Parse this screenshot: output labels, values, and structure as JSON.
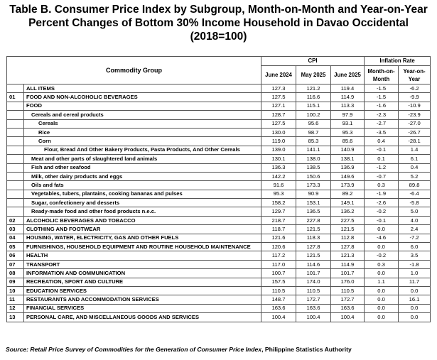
{
  "title": {
    "line1": "Table B. Consumer Price Index by Subgroup, Month-on-Month and Year-on-Year",
    "line2": "Percent Changes of Bottom 30% Income Household in Davao Occidental",
    "line3": "(2018=100)"
  },
  "header": {
    "commodity_group": "Commodity Group",
    "cpi": "CPI",
    "inflation_rate": "Inflation Rate",
    "col_june2024": "June 2024",
    "col_may2025": "May 2025",
    "col_june2025": "June 2025",
    "col_mom_line1": "Month-on-",
    "col_mom_line2": "Month",
    "col_yoy_line1": "Year-on-",
    "col_yoy_line2": "Year"
  },
  "rows": [
    {
      "code": "",
      "name": "ALL ITEMS",
      "level": 0,
      "june2024": "127.3",
      "may2025": "121.2",
      "june2025": "119.4",
      "mom": "-1.5",
      "yoy": "-6.2"
    },
    {
      "code": "01",
      "name": "FOOD AND NON-ALCOHOLIC BEVERAGES",
      "level": 0,
      "june2024": "127.5",
      "may2025": "116.6",
      "june2025": "114.9",
      "mom": "-1.5",
      "yoy": "-9.9"
    },
    {
      "code": "",
      "name": "FOOD",
      "level": 0,
      "june2024": "127.1",
      "may2025": "115.1",
      "june2025": "113.3",
      "mom": "-1.6",
      "yoy": "-10.9"
    },
    {
      "code": "",
      "name": "Cereals and cereal products",
      "level": 1,
      "june2024": "128.7",
      "may2025": "100.2",
      "june2025": "97.9",
      "mom": "-2.3",
      "yoy": "-23.9"
    },
    {
      "code": "",
      "name": "Cereals",
      "level": 2,
      "june2024": "127.5",
      "may2025": "95.6",
      "june2025": "93.1",
      "mom": "-2.7",
      "yoy": "-27.0"
    },
    {
      "code": "",
      "name": "Rice",
      "level": 2,
      "june2024": "130.0",
      "may2025": "98.7",
      "june2025": "95.3",
      "mom": "-3.5",
      "yoy": "-26.7"
    },
    {
      "code": "",
      "name": "Corn",
      "level": 2,
      "june2024": "119.0",
      "may2025": "85.3",
      "june2025": "85.6",
      "mom": "0.4",
      "yoy": "-28.1"
    },
    {
      "code": "",
      "name": "Flour, Bread And Other Bakery Products, Pasta Products, And Other Cereals",
      "level": 3,
      "june2024": "139.0",
      "may2025": "141.1",
      "june2025": "140.9",
      "mom": "-0.1",
      "yoy": "1.4"
    },
    {
      "code": "",
      "name": "Meat and other parts of slaughtered land animals",
      "level": 1,
      "june2024": "130.1",
      "may2025": "138.0",
      "june2025": "138.1",
      "mom": "0.1",
      "yoy": "6.1"
    },
    {
      "code": "",
      "name": "Fish and other seafood",
      "level": 1,
      "june2024": "136.3",
      "may2025": "138.5",
      "june2025": "136.9",
      "mom": "-1.2",
      "yoy": "0.4"
    },
    {
      "code": "",
      "name": "Milk, other dairy products and eggs",
      "level": 1,
      "june2024": "142.2",
      "may2025": "150.6",
      "june2025": "149.6",
      "mom": "-0.7",
      "yoy": "5.2"
    },
    {
      "code": "",
      "name": "Oils and fats",
      "level": 1,
      "june2024": "91.6",
      "may2025": "173.3",
      "june2025": "173.9",
      "mom": "0.3",
      "yoy": "89.8"
    },
    {
      "code": "",
      "name": "Vegetables, tubers, plantains, cooking bananas and pulses",
      "level": 1,
      "june2024": "95.3",
      "may2025": "90.9",
      "june2025": "89.2",
      "mom": "-1.9",
      "yoy": "-6.4"
    },
    {
      "code": "",
      "name": "Sugar, confectionery and desserts",
      "level": 1,
      "june2024": "158.2",
      "may2025": "153.1",
      "june2025": "149.1",
      "mom": "-2.6",
      "yoy": "-5.8"
    },
    {
      "code": "",
      "name": "Ready-made food and other food products n.e.c.",
      "level": 1,
      "june2024": "129.7",
      "may2025": "136.5",
      "june2025": "136.2",
      "mom": "-0.2",
      "yoy": "5.0"
    },
    {
      "code": "02",
      "name": "ALCOHOLIC BEVERAGES  AND TOBACCO",
      "level": 0,
      "june2024": "218.7",
      "may2025": "227.8",
      "june2025": "227.5",
      "mom": "-0.1",
      "yoy": "4.0"
    },
    {
      "code": "03",
      "name": "CLOTHING AND FOOTWEAR",
      "level": 0,
      "june2024": "118.7",
      "may2025": "121.5",
      "june2025": "121.5",
      "mom": "0.0",
      "yoy": "2.4"
    },
    {
      "code": "04",
      "name": "HOUSING, WATER, ELECTRICITY, GAS AND OTHER FUELS",
      "level": 0,
      "june2024": "121.6",
      "may2025": "118.3",
      "june2025": "112.8",
      "mom": "-4.6",
      "yoy": "-7.2"
    },
    {
      "code": "05",
      "name": "FURNISHINGS, HOUSEHOLD EQUIPMENT AND ROUTINE HOUSEHOLD MAINTENANCE",
      "level": 0,
      "june2024": "120.6",
      "may2025": "127.8",
      "june2025": "127.8",
      "mom": "0.0",
      "yoy": "6.0"
    },
    {
      "code": "06",
      "name": "HEALTH",
      "level": 0,
      "june2024": "117.2",
      "may2025": "121.5",
      "june2025": "121.3",
      "mom": "-0.2",
      "yoy": "3.5"
    },
    {
      "code": "07",
      "name": "TRANSPORT",
      "level": 0,
      "june2024": "117.0",
      "may2025": "114.6",
      "june2025": "114.9",
      "mom": "0.3",
      "yoy": "-1.8"
    },
    {
      "code": "08",
      "name": "INFORMATION AND COMMUNICATION",
      "level": 0,
      "june2024": "100.7",
      "may2025": "101.7",
      "june2025": "101.7",
      "mom": "0.0",
      "yoy": "1.0"
    },
    {
      "code": "09",
      "name": "RECREATION, SPORT AND CULTURE",
      "level": 0,
      "june2024": "157.5",
      "may2025": "174.0",
      "june2025": "176.0",
      "mom": "1.1",
      "yoy": "11.7"
    },
    {
      "code": "10",
      "name": "EDUCATION SERVICES",
      "level": 0,
      "june2024": "110.5",
      "may2025": "110.5",
      "june2025": "110.5",
      "mom": "0.0",
      "yoy": "0.0"
    },
    {
      "code": "11",
      "name": "RESTAURANTS AND ACCOMMODATION SERVICES",
      "level": 0,
      "june2024": "148.7",
      "may2025": "172.7",
      "june2025": "172.7",
      "mom": "0.0",
      "yoy": "16.1"
    },
    {
      "code": "12",
      "name": "FINANCIAL SERVICES",
      "level": 0,
      "june2024": "163.6",
      "may2025": "163.6",
      "june2025": "163.6",
      "mom": "0.0",
      "yoy": "0.0"
    },
    {
      "code": "13",
      "name": "PERSONAL CARE, AND MISCELLANEOUS GOODS AND SERVICES",
      "level": 0,
      "june2024": "100.4",
      "may2025": "100.4",
      "june2025": "100.4",
      "mom": "0.0",
      "yoy": "0.0"
    }
  ],
  "source": {
    "label": "Source: ",
    "text_italic": "Retail Price Survey of Commodities for the Generation of Consumer Price Index",
    "text_plain": ", Philippine Statistics Authority"
  }
}
